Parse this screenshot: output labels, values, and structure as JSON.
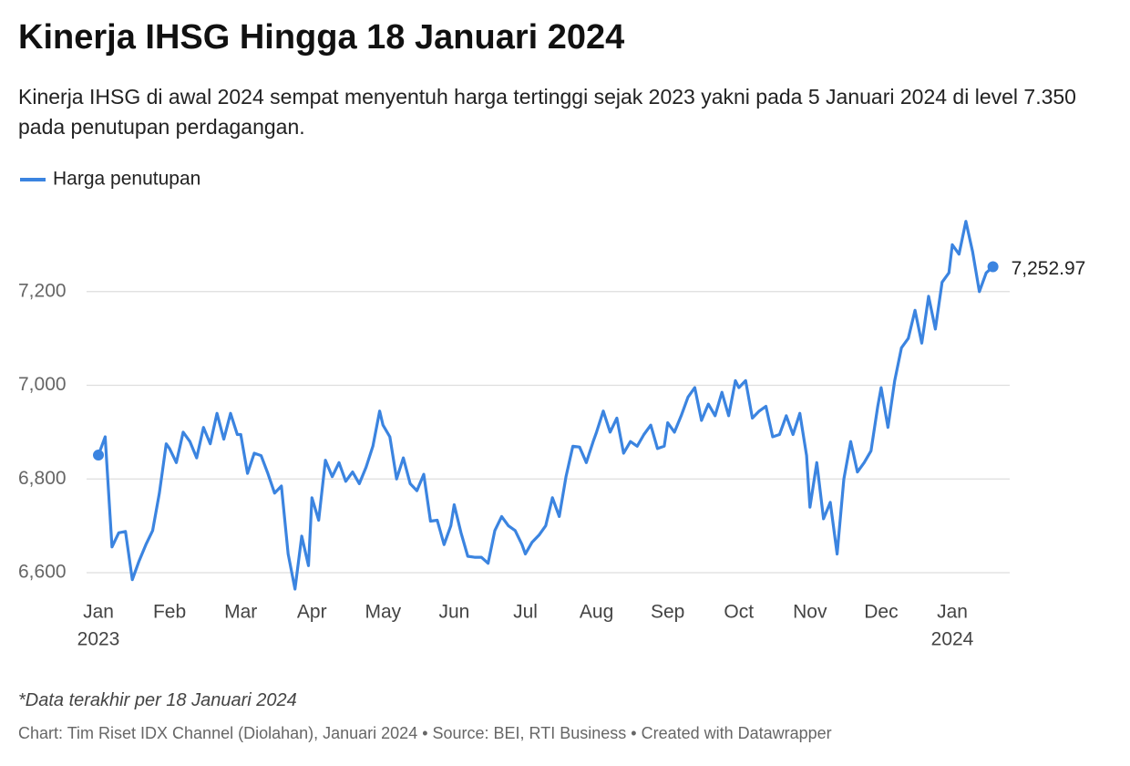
{
  "chart_data": {
    "type": "line",
    "title": "Kinerja IHSG Hingga 18 Januari 2024",
    "subtitle": "Kinerja IHSG di awal 2024 sempat menyentuh harga tertinggi sejak 2023 yakni pada 5 Januari 2024 di level 7.350 pada penutupan perdagangan.",
    "note": "*Data terakhir per 18 Januari 2024",
    "source": "Chart: Tim Riset IDX Channel (Diolahan), Januari 2024 • Source: BEI, RTI Business • Created with Datawrapper",
    "legend": "top-left",
    "grid": true,
    "xlim": [
      "2023-01",
      "2024-01"
    ],
    "xticks": [
      {
        "value": "2023-01",
        "label": "Jan",
        "year": "2023"
      },
      {
        "value": "2023-02",
        "label": "Feb"
      },
      {
        "value": "2023-03",
        "label": "Mar"
      },
      {
        "value": "2023-04",
        "label": "Apr"
      },
      {
        "value": "2023-05",
        "label": "May"
      },
      {
        "value": "2023-06",
        "label": "Jun"
      },
      {
        "value": "2023-07",
        "label": "Jul"
      },
      {
        "value": "2023-08",
        "label": "Aug"
      },
      {
        "value": "2023-09",
        "label": "Sep"
      },
      {
        "value": "2023-10",
        "label": "Oct"
      },
      {
        "value": "2023-11",
        "label": "Nov"
      },
      {
        "value": "2023-12",
        "label": "Dec"
      },
      {
        "value": "2024-01",
        "label": "Jan",
        "year": "2024"
      }
    ],
    "ylim": [
      6550,
      7400
    ],
    "yticks": [
      {
        "value": 6600,
        "label": "6,600"
      },
      {
        "value": 6800,
        "label": "6,800"
      },
      {
        "value": 7000,
        "label": "7,000"
      },
      {
        "value": 7200,
        "label": "7,200"
      }
    ],
    "series": [
      {
        "name": "Harga penutupan",
        "color": "#3b84e0",
        "x": [
          "2023-01",
          "2023-01",
          "2023-01",
          "2023-01",
          "2023-01",
          "2023-01",
          "2023-01",
          "2023-01",
          "2023-01",
          "2023-01",
          "2023-01",
          "2023-02",
          "2023-02",
          "2023-02",
          "2023-02",
          "2023-02",
          "2023-02",
          "2023-02",
          "2023-02",
          "2023-02",
          "2023-02",
          "2023-02",
          "2023-03",
          "2023-03",
          "2023-03",
          "2023-03",
          "2023-03",
          "2023-03",
          "2023-03",
          "2023-03",
          "2023-03",
          "2023-03",
          "2023-03",
          "2023-04",
          "2023-04",
          "2023-04",
          "2023-04",
          "2023-04",
          "2023-04",
          "2023-04",
          "2023-04",
          "2023-04",
          "2023-04",
          "2023-04",
          "2023-05",
          "2023-05",
          "2023-05",
          "2023-05",
          "2023-05",
          "2023-05",
          "2023-05",
          "2023-05",
          "2023-05",
          "2023-05",
          "2023-05",
          "2023-06",
          "2023-06",
          "2023-06",
          "2023-06",
          "2023-06",
          "2023-06",
          "2023-06",
          "2023-06",
          "2023-06",
          "2023-06",
          "2023-06",
          "2023-07",
          "2023-07",
          "2023-07",
          "2023-07",
          "2023-07",
          "2023-07",
          "2023-07",
          "2023-07",
          "2023-07",
          "2023-07",
          "2023-07",
          "2023-08",
          "2023-08",
          "2023-08",
          "2023-08",
          "2023-08",
          "2023-08",
          "2023-08",
          "2023-08",
          "2023-08",
          "2023-08",
          "2023-08",
          "2023-09",
          "2023-09",
          "2023-09",
          "2023-09",
          "2023-09",
          "2023-09",
          "2023-09",
          "2023-09",
          "2023-09",
          "2023-09",
          "2023-09",
          "2023-10",
          "2023-10",
          "2023-10",
          "2023-10",
          "2023-10",
          "2023-10",
          "2023-10",
          "2023-10",
          "2023-10",
          "2023-10",
          "2023-10",
          "2023-11",
          "2023-11",
          "2023-11",
          "2023-11",
          "2023-11",
          "2023-11",
          "2023-11",
          "2023-11",
          "2023-11",
          "2023-11",
          "2023-11",
          "2023-12",
          "2023-12",
          "2023-12",
          "2023-12",
          "2023-12",
          "2023-12",
          "2023-12",
          "2023-12",
          "2023-12",
          "2023-12",
          "2023-12",
          "2024-01",
          "2024-01",
          "2024-01",
          "2024-01",
          "2024-01",
          "2024-01",
          "2024-01"
        ],
        "values": [
          6851,
          6890,
          6655,
          6685,
          6688,
          6585,
          6625,
          6660,
          6690,
          6770,
          6875,
          6865,
          6835,
          6900,
          6880,
          6845,
          6910,
          6875,
          6940,
          6885,
          6940,
          6895,
          6895,
          6812,
          6855,
          6850,
          6812,
          6770,
          6785,
          6640,
          6565,
          6678,
          6615,
          6760,
          6712,
          6840,
          6805,
          6835,
          6795,
          6815,
          6790,
          6825,
          6870,
          6945,
          6915,
          6890,
          6800,
          6845,
          6790,
          6775,
          6810,
          6710,
          6712,
          6660,
          6700,
          6745,
          6685,
          6635,
          6633,
          6633,
          6620,
          6690,
          6720,
          6700,
          6690,
          6660,
          6640,
          6665,
          6680,
          6700,
          6760,
          6720,
          6805,
          6870,
          6868,
          6835,
          6880,
          6900,
          6945,
          6900,
          6930,
          6855,
          6880,
          6870,
          6895,
          6915,
          6865,
          6870,
          6920,
          6900,
          6935,
          6975,
          6995,
          6925,
          6960,
          6935,
          6985,
          6935,
          7010,
          6995,
          7010,
          6930,
          6945,
          6955,
          6890,
          6895,
          6935,
          6895,
          6940,
          6850,
          6740,
          6835,
          6715,
          6750,
          6640,
          6800,
          6880,
          6815,
          6835,
          6860,
          6955,
          6995,
          6910,
          7010,
          7080,
          7100,
          7160,
          7090,
          7190,
          7120,
          7220,
          7240,
          7300,
          7280,
          7350,
          7285,
          7200,
          7240,
          7252.97
        ],
        "value_labels": [
          null,
          null,
          null,
          null,
          null,
          null,
          null,
          null,
          null,
          null,
          null,
          null,
          null,
          null,
          null,
          null,
          null,
          null,
          null,
          null,
          null,
          null,
          null,
          null,
          null,
          null,
          null,
          null,
          null,
          null,
          null,
          null,
          null,
          null,
          null,
          null,
          null,
          null,
          null,
          null,
          null,
          null,
          null,
          null,
          null,
          null,
          null,
          null,
          null,
          null,
          null,
          null,
          null,
          null,
          null,
          null,
          null,
          null,
          null,
          null,
          null,
          null,
          null,
          null,
          null,
          null,
          null,
          null,
          null,
          null,
          null,
          null,
          null,
          null,
          null,
          null,
          null,
          null,
          null,
          null,
          null,
          null,
          null,
          null,
          null,
          null,
          null,
          null,
          null,
          null,
          null,
          null,
          null,
          null,
          null,
          null,
          null,
          null,
          null,
          null,
          null,
          null,
          null,
          null,
          null,
          null,
          null,
          null,
          null,
          null,
          null,
          null,
          null,
          null,
          null,
          null,
          null,
          null,
          null,
          null,
          null,
          null,
          null,
          null,
          null,
          null,
          null,
          null,
          null,
          null,
          null,
          null,
          null,
          null,
          null,
          null,
          null,
          null,
          "7,252.97"
        ]
      }
    ]
  }
}
